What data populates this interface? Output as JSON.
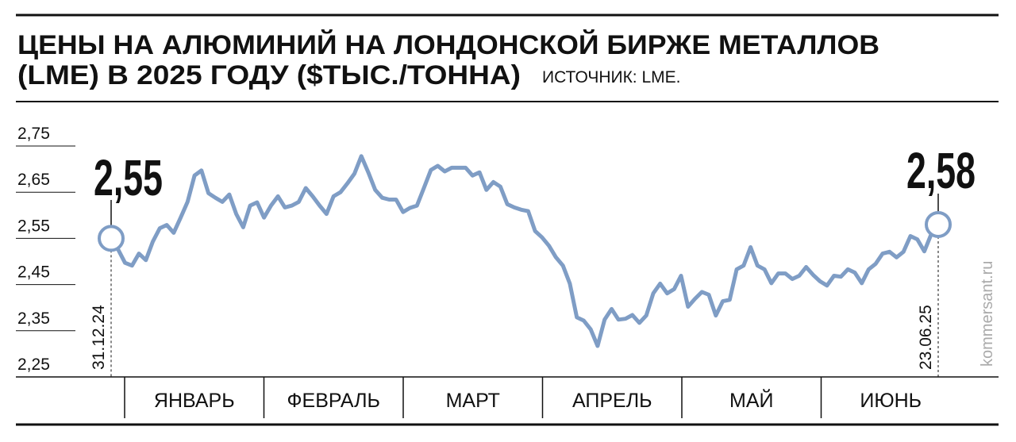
{
  "chart_data": {
    "type": "line",
    "title": [
      "ЦЕНЫ НА АЛЮМИНИЙ НА ЛОНДОНСКОЙ БИРЖЕ МЕТАЛЛОВ",
      "(LME) В 2025 ГОДУ ($ТЫС./ТОННА)"
    ],
    "source": "ИСТОЧНИК: LME.",
    "watermark": "kommersant.ru",
    "months": [
      "ЯНВАРЬ",
      "ФЕВРАЛЬ",
      "МАРТ",
      "АПРЕЛЬ",
      "МАЙ",
      "ИЮНЬ"
    ],
    "color": "#7f9dc5",
    "ylim": [
      2.25,
      2.78
    ],
    "yticks": [
      {
        "value": 2.25,
        "label": "2,25"
      },
      {
        "value": 2.35,
        "label": "2,35"
      },
      {
        "value": 2.45,
        "label": "2,45"
      },
      {
        "value": 2.55,
        "label": "2,55"
      },
      {
        "value": 2.65,
        "label": "2,65"
      },
      {
        "value": 2.75,
        "label": "2,75"
      }
    ],
    "categories": [
      "31.12.24",
      null,
      null,
      null,
      null,
      null,
      null,
      null,
      null,
      null,
      null,
      null,
      null,
      null,
      null,
      null,
      null,
      null,
      null,
      null,
      null,
      null,
      null,
      null,
      null,
      null,
      null,
      null,
      null,
      null,
      null,
      null,
      null,
      null,
      null,
      null,
      null,
      null,
      null,
      null,
      null,
      null,
      null,
      null,
      null,
      null,
      null,
      null,
      null,
      null,
      null,
      null,
      null,
      null,
      null,
      null,
      null,
      null,
      null,
      null,
      null,
      null,
      null,
      null,
      null,
      null,
      null,
      null,
      null,
      null,
      null,
      null,
      null,
      null,
      null,
      null,
      null,
      null,
      null,
      null,
      null,
      null,
      null,
      null,
      null,
      null,
      null,
      null,
      null,
      null,
      null,
      null,
      null,
      null,
      null,
      null,
      null,
      null,
      null,
      null,
      null,
      null,
      null,
      null,
      null,
      null,
      null,
      null,
      null,
      null,
      null,
      null,
      null,
      null,
      null,
      null,
      null,
      null,
      null,
      "23.06.25"
    ],
    "values": [
      2.55,
      2.526,
      2.497,
      2.491,
      2.517,
      2.503,
      2.543,
      2.572,
      2.579,
      2.562,
      2.595,
      2.629,
      2.686,
      2.697,
      2.648,
      2.638,
      2.629,
      2.645,
      2.603,
      2.574,
      2.621,
      2.628,
      2.595,
      2.621,
      2.641,
      2.617,
      2.621,
      2.629,
      2.659,
      2.641,
      2.621,
      2.603,
      2.641,
      2.65,
      2.669,
      2.69,
      2.728,
      2.693,
      2.655,
      2.638,
      2.634,
      2.634,
      2.607,
      2.616,
      2.621,
      2.659,
      2.698,
      2.707,
      2.695,
      2.703,
      2.703,
      2.703,
      2.686,
      2.693,
      2.655,
      2.672,
      2.662,
      2.624,
      2.617,
      2.612,
      2.609,
      2.566,
      2.552,
      2.534,
      2.509,
      2.491,
      2.452,
      2.379,
      2.372,
      2.353,
      2.317,
      2.374,
      2.397,
      2.374,
      2.376,
      2.384,
      2.367,
      2.383,
      2.431,
      2.452,
      2.431,
      2.44,
      2.469,
      2.402,
      2.419,
      2.434,
      2.428,
      2.383,
      2.414,
      2.417,
      2.483,
      2.491,
      2.531,
      2.491,
      2.483,
      2.453,
      2.474,
      2.474,
      2.462,
      2.469,
      2.488,
      2.471,
      2.457,
      2.448,
      2.469,
      2.467,
      2.483,
      2.476,
      2.453,
      2.483,
      2.495,
      2.517,
      2.521,
      2.509,
      2.521,
      2.555,
      2.548,
      2.522,
      2.559,
      2.58
    ],
    "value_labels": [
      "2,55",
      null,
      null,
      null,
      null,
      null,
      null,
      null,
      null,
      null,
      null,
      null,
      null,
      null,
      null,
      null,
      null,
      null,
      null,
      null,
      null,
      null,
      null,
      null,
      null,
      null,
      null,
      null,
      null,
      null,
      null,
      null,
      null,
      null,
      null,
      null,
      null,
      null,
      null,
      null,
      null,
      null,
      null,
      null,
      null,
      null,
      null,
      null,
      null,
      null,
      null,
      null,
      null,
      null,
      null,
      null,
      null,
      null,
      null,
      null,
      null,
      null,
      null,
      null,
      null,
      null,
      null,
      null,
      null,
      null,
      null,
      null,
      null,
      null,
      null,
      null,
      null,
      null,
      null,
      null,
      null,
      null,
      null,
      null,
      null,
      null,
      null,
      null,
      null,
      null,
      null,
      null,
      null,
      null,
      null,
      null,
      null,
      null,
      null,
      null,
      null,
      null,
      null,
      null,
      null,
      null,
      null,
      null,
      null,
      null,
      null,
      null,
      null,
      null,
      null,
      null,
      null,
      null,
      null,
      "2,58"
    ]
  }
}
